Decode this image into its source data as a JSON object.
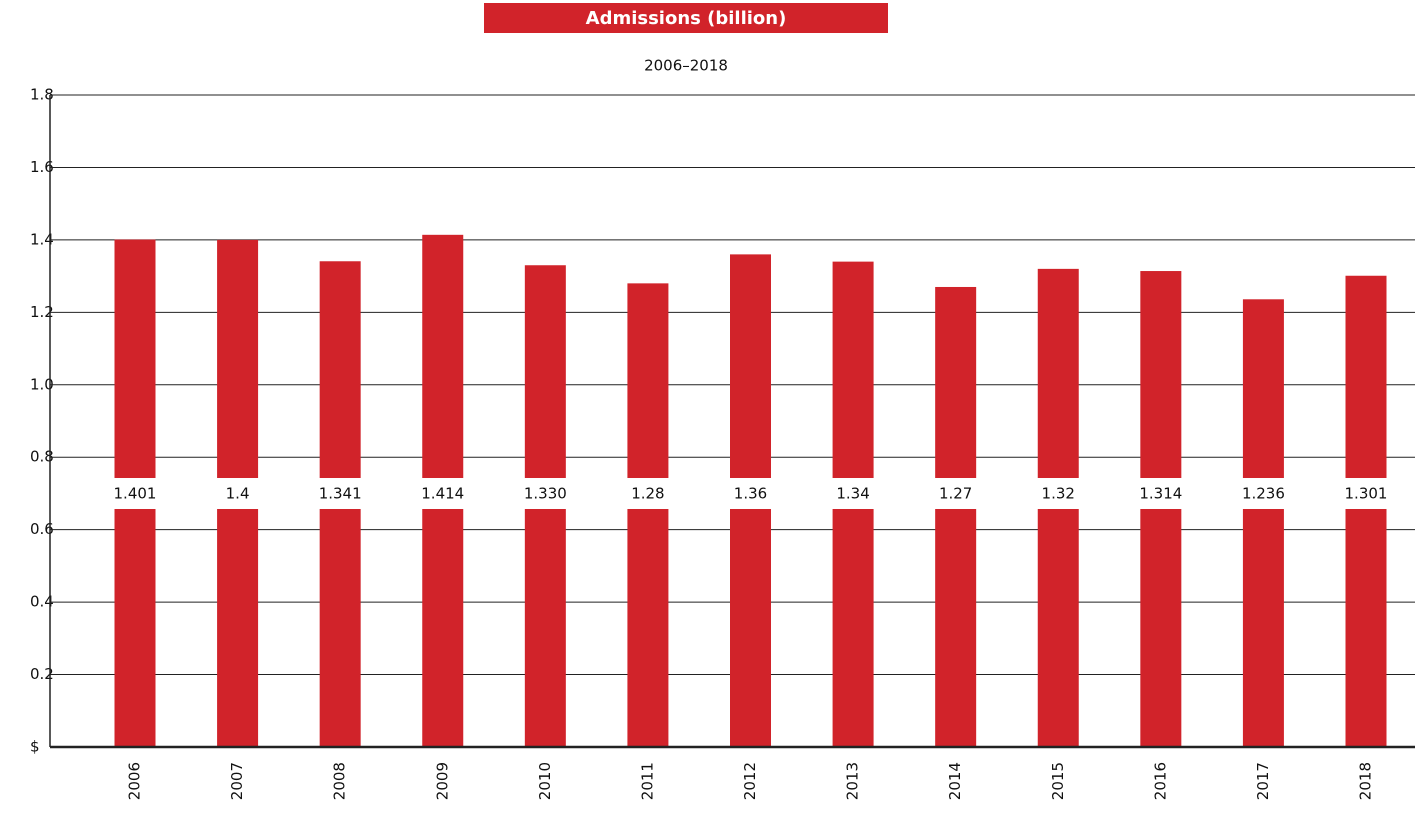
{
  "chart_data": {
    "type": "bar",
    "title": "Admissions (billion)",
    "subtitle": "2006–2018",
    "categories": [
      "2006",
      "2007",
      "2008",
      "2009",
      "2010",
      "2011",
      "2012",
      "2013",
      "2014",
      "2015",
      "2016",
      "2017",
      "2018"
    ],
    "values": [
      1.401,
      1.4,
      1.341,
      1.414,
      1.33,
      1.28,
      1.36,
      1.34,
      1.27,
      1.32,
      1.314,
      1.236,
      1.301
    ],
    "value_labels": [
      "1.401",
      "1.4",
      "1.341",
      "1.414",
      "1.330",
      "1.28",
      "1.36",
      "1.34",
      "1.27",
      "1.32",
      "1.314",
      "1.236",
      "1.301"
    ],
    "color": "#d1232a",
    "ylim": [
      0,
      1.8
    ],
    "yticks": [
      {
        "value": 0,
        "label": "$"
      },
      0.2,
      0.4,
      0.6,
      0.8,
      {
        "value": 1.0,
        "label": "1.0"
      },
      1.2,
      1.4,
      1.6,
      1.8
    ],
    "grid": true
  }
}
